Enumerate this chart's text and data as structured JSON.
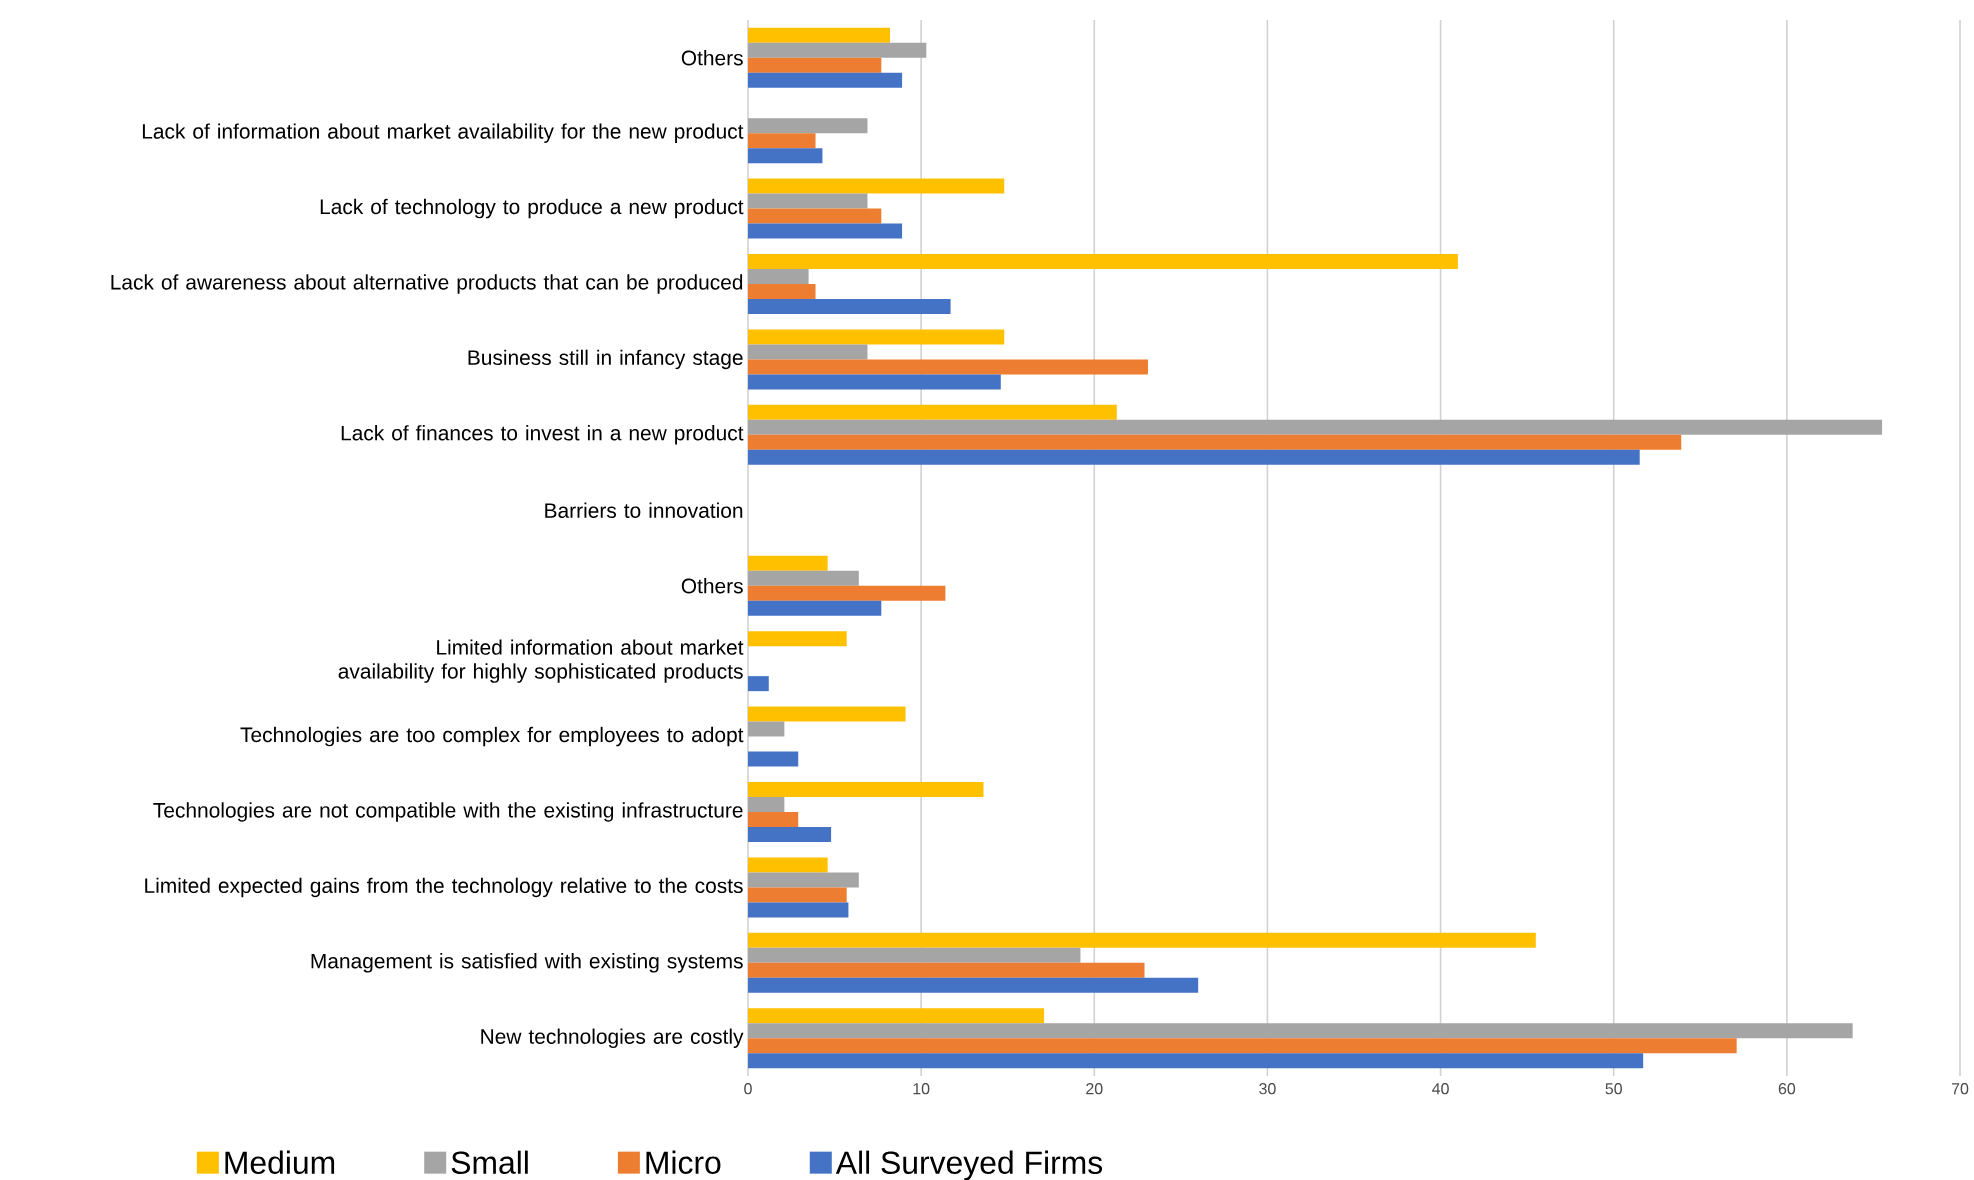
{
  "chart_data": {
    "type": "bar",
    "orientation": "horizontal",
    "categories": [
      "Others",
      "Lack of information about market availability for the new product",
      "Lack of technology to produce a new product",
      "Lack of awareness about alternative products that can be produced",
      "Business still in infancy stage",
      "Lack of finances to invest in a new product",
      "Barriers to innovation",
      "Others",
      "Limited information about market availability for highly sophisticated products",
      "Technologies are too complex for employees to adopt",
      "Technologies are not compatible with the existing infrastructure",
      "Limited expected gains from the technology relative to the costs",
      "Management is satisfied with existing systems",
      "New technologies are costly"
    ],
    "series": [
      {
        "name": "Medium",
        "color": "#ffc000",
        "values": [
          8.2,
          null,
          14.8,
          41.0,
          14.8,
          21.3,
          null,
          4.6,
          5.7,
          9.1,
          13.6,
          4.6,
          45.5,
          17.1
        ]
      },
      {
        "name": "Small",
        "color": "#a5a5a5",
        "values": [
          10.3,
          6.9,
          6.9,
          3.5,
          6.9,
          65.5,
          null,
          6.4,
          null,
          2.1,
          2.1,
          6.4,
          19.2,
          63.8
        ]
      },
      {
        "name": "Micro",
        "color": "#ed7d31",
        "values": [
          7.7,
          3.9,
          7.7,
          3.9,
          23.1,
          53.9,
          null,
          11.4,
          null,
          null,
          2.9,
          5.7,
          22.9,
          57.1
        ]
      },
      {
        "name": "All Surveyed Firms",
        "color": "#4472c4",
        "values": [
          8.9,
          4.3,
          8.9,
          11.7,
          14.6,
          51.5,
          null,
          7.7,
          1.2,
          2.9,
          4.8,
          5.8,
          26.0,
          51.7
        ]
      }
    ],
    "xlim": [
      0,
      70
    ],
    "xticks": [
      0,
      10,
      20,
      30,
      40,
      50,
      60,
      70
    ],
    "grid": "x",
    "legend": "bottom"
  }
}
